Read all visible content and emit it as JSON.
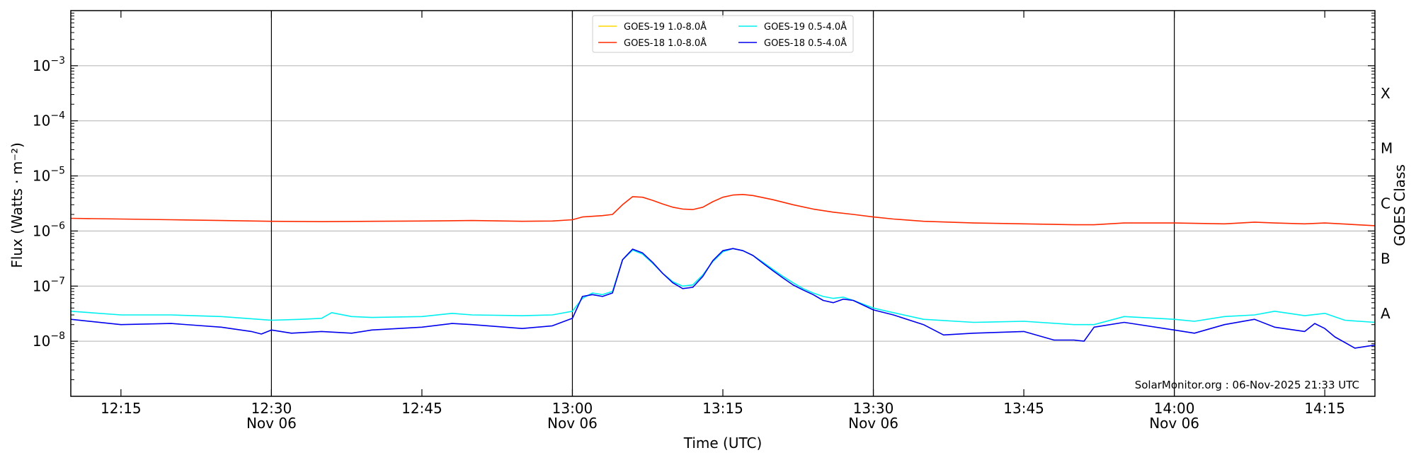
{
  "chart_data": {
    "type": "line",
    "xlabel": "Time (UTC)",
    "ylabel": "Flux (Watts · m⁻²)",
    "y2label": "GOES Class",
    "yscale": "log",
    "ylim": [
      1e-09,
      0.01
    ],
    "xlim_minutes": [
      "12:10",
      "14:20"
    ],
    "grid": "horizontal",
    "legend_position": "top-center",
    "x_ticks": [
      {
        "time": "12:15",
        "label": "12:15",
        "date": ""
      },
      {
        "time": "12:30",
        "label": "12:30",
        "date": "Nov 06"
      },
      {
        "time": "12:45",
        "label": "12:45",
        "date": ""
      },
      {
        "time": "13:00",
        "label": "13:00",
        "date": "Nov 06"
      },
      {
        "time": "13:15",
        "label": "13:15",
        "date": ""
      },
      {
        "time": "13:30",
        "label": "13:30",
        "date": "Nov 06"
      },
      {
        "time": "13:45",
        "label": "13:45",
        "date": ""
      },
      {
        "time": "14:00",
        "label": "14:00",
        "date": "Nov 06"
      },
      {
        "time": "14:15",
        "label": "14:15",
        "date": ""
      }
    ],
    "day_lines": [
      "12:30",
      "13:00",
      "13:30",
      "14:00"
    ],
    "y_ticks": [
      {
        "value": 1e-08,
        "base": "10",
        "exp": "−8"
      },
      {
        "value": 1e-07,
        "base": "10",
        "exp": "−7"
      },
      {
        "value": 1e-06,
        "base": "10",
        "exp": "−6"
      },
      {
        "value": 1e-05,
        "base": "10",
        "exp": "−5"
      },
      {
        "value": 0.0001,
        "base": "10",
        "exp": "−4"
      },
      {
        "value": 0.001,
        "base": "10",
        "exp": "−3"
      }
    ],
    "goes_classes": [
      {
        "label": "A",
        "value": 3.16e-08
      },
      {
        "label": "B",
        "value": 3.16e-07
      },
      {
        "label": "C",
        "value": 3.16e-06
      },
      {
        "label": "M",
        "value": 3.16e-05
      },
      {
        "label": "X",
        "value": 0.000316
      }
    ],
    "series": [
      {
        "name": "GOES-19 1.0-8.0Å",
        "color": "#ffd700",
        "x": [],
        "values": []
      },
      {
        "name": "GOES-18 1.0-8.0Å",
        "color": "#ff2a00",
        "x": [
          "12:10",
          "12:20",
          "12:25",
          "12:30",
          "12:35",
          "12:40",
          "12:45",
          "12:50",
          "12:55",
          "12:58",
          "13:00",
          "13:01",
          "13:03",
          "13:04",
          "13:05",
          "13:06",
          "13:07",
          "13:08",
          "13:09",
          "13:10",
          "13:11",
          "13:12",
          "13:13",
          "13:14",
          "13:15",
          "13:16",
          "13:17",
          "13:18",
          "13:20",
          "13:22",
          "13:24",
          "13:26",
          "13:28",
          "13:30",
          "13:32",
          "13:35",
          "13:40",
          "13:45",
          "13:50",
          "13:52",
          "13:55",
          "14:00",
          "14:05",
          "14:08",
          "14:10",
          "14:13",
          "14:15",
          "14:20"
        ],
        "values": [
          1.7e-06,
          1.6e-06,
          1.55e-06,
          1.5e-06,
          1.48e-06,
          1.5e-06,
          1.52e-06,
          1.55e-06,
          1.5e-06,
          1.52e-06,
          1.6e-06,
          1.8e-06,
          1.9e-06,
          2e-06,
          3e-06,
          4.2e-06,
          4.1e-06,
          3.6e-06,
          3.1e-06,
          2.7e-06,
          2.5e-06,
          2.45e-06,
          2.7e-06,
          3.4e-06,
          4.1e-06,
          4.5e-06,
          4.6e-06,
          4.4e-06,
          3.7e-06,
          3e-06,
          2.5e-06,
          2.2e-06,
          2e-06,
          1.8e-06,
          1.65e-06,
          1.5e-06,
          1.4e-06,
          1.35e-06,
          1.3e-06,
          1.3e-06,
          1.4e-06,
          1.4e-06,
          1.35e-06,
          1.45e-06,
          1.4e-06,
          1.35e-06,
          1.4e-06,
          1.25e-06
        ]
      },
      {
        "name": "GOES-19 0.5-4.0Å",
        "color": "#00f0f0",
        "x": [
          "12:10",
          "12:15",
          "12:20",
          "12:25",
          "12:30",
          "12:33",
          "12:35",
          "12:36",
          "12:38",
          "12:40",
          "12:45",
          "12:48",
          "12:50",
          "12:55",
          "12:58",
          "13:00",
          "13:01",
          "13:02",
          "13:03",
          "13:04",
          "13:05",
          "13:06",
          "13:07",
          "13:08",
          "13:09",
          "13:10",
          "13:11",
          "13:12",
          "13:13",
          "13:14",
          "13:15",
          "13:16",
          "13:17",
          "13:18",
          "13:19",
          "13:20",
          "13:21",
          "13:22",
          "13:23",
          "13:24",
          "13:25",
          "13:26",
          "13:27",
          "13:28",
          "13:30",
          "13:32",
          "13:35",
          "13:40",
          "13:45",
          "13:50",
          "13:52",
          "13:55",
          "14:00",
          "14:02",
          "14:05",
          "14:08",
          "14:10",
          "14:13",
          "14:15",
          "14:17",
          "14:20"
        ],
        "values": [
          3.5e-08,
          3e-08,
          3e-08,
          2.8e-08,
          2.4e-08,
          2.5e-08,
          2.6e-08,
          3.3e-08,
          2.8e-08,
          2.7e-08,
          2.8e-08,
          3.2e-08,
          3e-08,
          2.9e-08,
          3e-08,
          3.5e-08,
          6e-08,
          7.5e-08,
          7e-08,
          8e-08,
          3e-07,
          4.5e-07,
          3.8e-07,
          2.6e-07,
          1.7e-07,
          1.2e-07,
          1e-07,
          1.05e-07,
          1.6e-07,
          2.8e-07,
          4.2e-07,
          4.8e-07,
          4.4e-07,
          3.6e-07,
          2.7e-07,
          2e-07,
          1.5e-07,
          1.15e-07,
          9e-08,
          7.5e-08,
          6.5e-08,
          6e-08,
          6.3e-08,
          5.5e-08,
          4e-08,
          3.3e-08,
          2.5e-08,
          2.2e-08,
          2.3e-08,
          2e-08,
          2e-08,
          2.8e-08,
          2.5e-08,
          2.3e-08,
          2.8e-08,
          3e-08,
          3.5e-08,
          2.9e-08,
          3.2e-08,
          2.4e-08,
          2.2e-08
        ]
      },
      {
        "name": "GOES-18 0.5-4.0Å",
        "color": "#0000ee",
        "x": [
          "12:10",
          "12:15",
          "12:20",
          "12:25",
          "12:28",
          "12:29",
          "12:30",
          "12:32",
          "12:35",
          "12:38",
          "12:40",
          "12:45",
          "12:48",
          "12:50",
          "12:55",
          "12:58",
          "13:00",
          "13:01",
          "13:02",
          "13:03",
          "13:04",
          "13:05",
          "13:06",
          "13:07",
          "13:08",
          "13:09",
          "13:10",
          "13:11",
          "13:12",
          "13:13",
          "13:14",
          "13:15",
          "13:16",
          "13:17",
          "13:18",
          "13:19",
          "13:20",
          "13:21",
          "13:22",
          "13:23",
          "13:24",
          "13:25",
          "13:26",
          "13:27",
          "13:28",
          "13:30",
          "13:32",
          "13:35",
          "13:37",
          "13:40",
          "13:45",
          "13:48",
          "13:50",
          "13:51",
          "13:52",
          "13:55",
          "14:00",
          "14:02",
          "14:05",
          "14:08",
          "14:10",
          "14:13",
          "14:14",
          "14:15",
          "14:16",
          "14:18",
          "14:20"
        ],
        "values": [
          2.5e-08,
          2e-08,
          2.1e-08,
          1.8e-08,
          1.5e-08,
          1.35e-08,
          1.6e-08,
          1.4e-08,
          1.5e-08,
          1.4e-08,
          1.6e-08,
          1.8e-08,
          2.1e-08,
          2e-08,
          1.7e-08,
          1.9e-08,
          2.6e-08,
          6.5e-08,
          7e-08,
          6.5e-08,
          7.5e-08,
          3e-07,
          4.7e-07,
          4e-07,
          2.7e-07,
          1.7e-07,
          1.15e-07,
          9e-08,
          9.5e-08,
          1.5e-07,
          2.9e-07,
          4.4e-07,
          4.8e-07,
          4.4e-07,
          3.6e-07,
          2.6e-07,
          1.9e-07,
          1.4e-07,
          1.05e-07,
          8.5e-08,
          7e-08,
          5.5e-08,
          5e-08,
          5.8e-08,
          5.5e-08,
          3.7e-08,
          3e-08,
          2e-08,
          1.3e-08,
          1.4e-08,
          1.5e-08,
          1.05e-08,
          1.05e-08,
          1e-08,
          1.8e-08,
          2.2e-08,
          1.6e-08,
          1.4e-08,
          2e-08,
          2.5e-08,
          1.8e-08,
          1.5e-08,
          2.1e-08,
          1.7e-08,
          1.2e-08,
          7.5e-09,
          8.5e-09
        ]
      }
    ],
    "footer": "SolarMonitor.org : 06-Nov-2025 21:33 UTC"
  }
}
